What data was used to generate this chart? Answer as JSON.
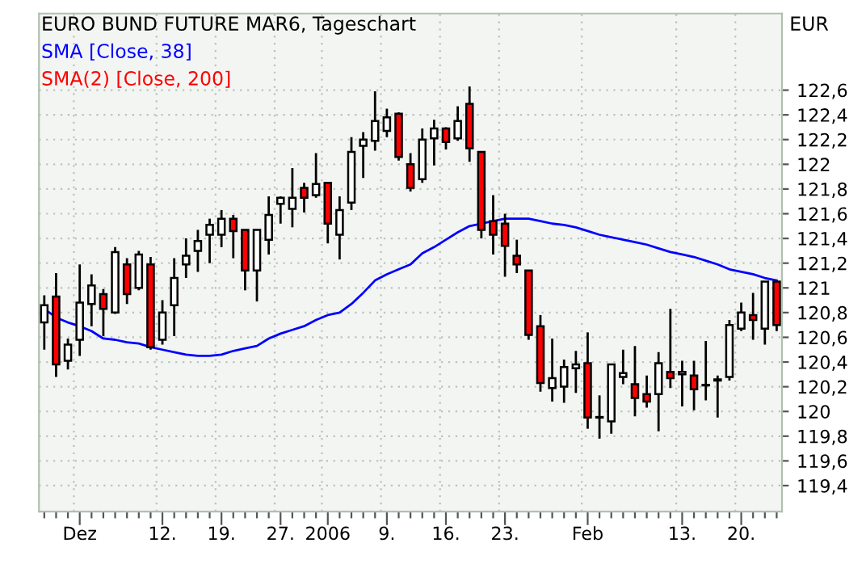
{
  "chart_data": {
    "type": "candlestick",
    "title": "EURO BUND FUTURE MAR6, Tageschart",
    "ylabel": "EUR",
    "categories": [
      null,
      null,
      null,
      "Dez",
      null,
      null,
      null,
      null,
      null,
      null,
      "12.",
      null,
      null,
      null,
      null,
      "19.",
      null,
      null,
      null,
      null,
      "27.",
      null,
      null,
      null,
      "2006",
      null,
      null,
      null,
      null,
      "9.",
      null,
      null,
      null,
      null,
      "16.",
      null,
      null,
      null,
      null,
      "23.",
      null,
      null,
      null,
      null,
      null,
      null,
      "Feb",
      null,
      null,
      null,
      null,
      null,
      null,
      null,
      "13.",
      null,
      null,
      null,
      null,
      "20.",
      null,
      null,
      null
    ],
    "ohlc": [
      [
        120.72,
        120.94,
        120.5,
        120.86
      ],
      [
        120.93,
        121.12,
        120.28,
        120.38
      ],
      [
        120.41,
        120.59,
        120.34,
        120.54
      ],
      [
        120.58,
        121.19,
        120.45,
        120.88
      ],
      [
        120.87,
        121.11,
        120.69,
        121.02
      ],
      [
        120.95,
        120.99,
        120.61,
        120.83
      ],
      [
        120.8,
        121.33,
        120.79,
        121.29
      ],
      [
        121.19,
        121.24,
        120.87,
        120.95
      ],
      [
        121.0,
        121.3,
        120.98,
        121.27
      ],
      [
        121.19,
        121.25,
        120.5,
        120.52
      ],
      [
        120.58,
        120.9,
        120.54,
        120.8
      ],
      [
        120.86,
        121.24,
        120.61,
        121.08
      ],
      [
        121.19,
        121.4,
        121.08,
        121.26
      ],
      [
        121.3,
        121.47,
        121.13,
        121.38
      ],
      [
        121.43,
        121.56,
        121.2,
        121.51
      ],
      [
        121.43,
        121.63,
        121.33,
        121.56
      ],
      [
        121.56,
        121.59,
        121.24,
        121.46
      ],
      [
        121.47,
        121.47,
        120.98,
        121.14
      ],
      [
        121.14,
        121.47,
        120.89,
        121.47
      ],
      [
        121.39,
        121.74,
        121.27,
        121.59
      ],
      [
        121.68,
        121.74,
        121.52,
        121.73
      ],
      [
        121.64,
        121.97,
        121.49,
        121.73
      ],
      [
        121.81,
        121.85,
        121.61,
        121.73
      ],
      [
        121.75,
        122.09,
        121.73,
        121.84
      ],
      [
        121.85,
        121.85,
        121.36,
        121.52
      ],
      [
        121.43,
        121.74,
        121.23,
        121.63
      ],
      [
        121.69,
        122.22,
        121.63,
        122.1
      ],
      [
        122.15,
        122.26,
        121.89,
        122.2
      ],
      [
        122.19,
        122.59,
        122.11,
        122.35
      ],
      [
        122.27,
        122.45,
        122.22,
        122.38
      ],
      [
        122.41,
        122.42,
        122.03,
        122.06
      ],
      [
        122.0,
        122.09,
        121.78,
        121.81
      ],
      [
        121.88,
        122.29,
        121.85,
        122.2
      ],
      [
        122.21,
        122.36,
        121.99,
        122.29
      ],
      [
        122.29,
        122.3,
        122.12,
        122.18
      ],
      [
        122.21,
        122.47,
        122.19,
        122.35
      ],
      [
        122.49,
        122.63,
        122.02,
        122.13
      ],
      [
        122.1,
        122.1,
        121.4,
        121.47
      ],
      [
        121.54,
        121.75,
        121.27,
        121.43
      ],
      [
        121.52,
        121.6,
        121.09,
        121.34
      ],
      [
        121.26,
        121.39,
        121.12,
        121.19
      ],
      [
        121.14,
        121.14,
        120.58,
        120.62
      ],
      [
        120.69,
        120.78,
        120.16,
        120.23
      ],
      [
        120.19,
        120.59,
        120.08,
        120.27
      ],
      [
        120.2,
        120.42,
        120.07,
        120.36
      ],
      [
        120.35,
        120.49,
        120.15,
        120.38
      ],
      [
        120.39,
        120.64,
        119.86,
        119.95
      ],
      [
        119.95,
        120.13,
        119.78,
        119.95
      ],
      [
        119.92,
        120.38,
        119.82,
        120.38
      ],
      [
        120.28,
        120.5,
        120.22,
        120.31
      ],
      [
        120.22,
        120.53,
        119.96,
        120.11
      ],
      [
        120.14,
        120.29,
        120.03,
        120.08
      ],
      [
        120.14,
        120.48,
        119.84,
        120.39
      ],
      [
        120.32,
        120.83,
        120.19,
        120.27
      ],
      [
        120.3,
        120.41,
        120.04,
        120.32
      ],
      [
        120.29,
        120.41,
        120.01,
        120.18
      ],
      [
        120.21,
        120.57,
        120.09,
        120.21
      ],
      [
        120.25,
        120.29,
        119.95,
        120.26
      ],
      [
        120.28,
        120.74,
        120.25,
        120.7
      ],
      [
        120.67,
        120.88,
        120.65,
        120.8
      ],
      [
        120.78,
        120.96,
        120.58,
        120.74
      ],
      [
        120.67,
        121.05,
        120.54,
        121.05
      ],
      [
        121.05,
        121.05,
        120.65,
        120.7
      ]
    ],
    "colors": [
      "#ffffff",
      "#ff0000",
      "#ffffff",
      "#ffffff",
      "#ffffff",
      "#ff0000",
      "#ffffff",
      "#ff0000",
      "#ffffff",
      "#ff0000",
      "#ffffff",
      "#ffffff",
      "#ffffff",
      "#ffffff",
      "#ffffff",
      "#ffffff",
      "#ff0000",
      "#ff0000",
      "#ffffff",
      "#ffffff",
      "#ffffff",
      "#ffffff",
      "#ff0000",
      "#ffffff",
      "#ff0000",
      "#ffffff",
      "#ffffff",
      "#ffffff",
      "#ffffff",
      "#ffffff",
      "#ff0000",
      "#ff0000",
      "#ffffff",
      "#ffffff",
      "#ff0000",
      "#ffffff",
      "#ff0000",
      "#ff0000",
      "#ff0000",
      "#ff0000",
      "#ff0000",
      "#ff0000",
      "#ff0000",
      "#ffffff",
      "#ffffff",
      "#ffffff",
      "#ff0000",
      "#ffffff",
      "#ffffff",
      "#ffffff",
      "#ff0000",
      "#ff0000",
      "#ffffff",
      "#ff0000",
      "#ffffff",
      "#ff0000",
      "#ffffff",
      "#ffffff",
      "#ffffff",
      "#ffffff",
      "#ff0000",
      "#ffffff",
      "#ff0000"
    ],
    "series": [
      {
        "name": "SMA [Close, 38]",
        "type": "line",
        "color": "#0000ff",
        "values": [
          120.83,
          120.76,
          120.72,
          120.69,
          120.65,
          120.59,
          120.58,
          120.56,
          120.55,
          120.52,
          120.5,
          120.48,
          120.46,
          120.45,
          120.45,
          120.46,
          120.49,
          120.51,
          120.53,
          120.59,
          120.63,
          120.66,
          120.69,
          120.74,
          120.78,
          120.8,
          120.87,
          120.96,
          121.06,
          121.11,
          121.15,
          121.19,
          121.28,
          121.33,
          121.39,
          121.45,
          121.5,
          121.52,
          121.54,
          121.56,
          121.56,
          121.56,
          121.54,
          121.52,
          121.51,
          121.49,
          121.46,
          121.43,
          121.41,
          121.39,
          121.37,
          121.35,
          121.32,
          121.29,
          121.27,
          121.25,
          121.22,
          121.19,
          121.15,
          121.13,
          121.11,
          121.08,
          121.06
        ]
      },
      {
        "name": "SMA(2) [Close, 200]",
        "type": "line",
        "color": "#ff0000",
        "values": [
          null,
          null,
          null,
          null,
          null,
          null,
          null,
          null,
          null,
          null,
          null,
          null,
          null,
          null,
          null,
          null,
          null,
          null,
          null,
          null,
          null,
          null,
          null,
          null,
          null,
          null,
          null,
          null,
          null,
          null,
          null,
          null,
          null,
          null,
          null,
          null,
          null,
          null,
          null,
          null,
          null,
          null,
          null,
          null,
          null,
          null,
          null,
          null,
          null,
          null,
          null,
          null,
          null,
          null,
          null,
          null,
          null,
          null,
          null,
          null,
          null,
          null,
          null
        ]
      }
    ],
    "ylim": [
      119.19,
      123.22
    ],
    "yticks": [
      {
        "value": 119.4,
        "label": "119,4"
      },
      {
        "value": 119.6,
        "label": "119,6"
      },
      {
        "value": 119.8,
        "label": "119,8"
      },
      120,
      {
        "value": 120.2,
        "label": "120,2"
      },
      {
        "value": 120.4,
        "label": "120,4"
      },
      {
        "value": 120.6,
        "label": "120,6"
      },
      {
        "value": 120.8,
        "label": "120,8"
      },
      121,
      {
        "value": 121.2,
        "label": "121,2"
      },
      {
        "value": 121.4,
        "label": "121,4"
      },
      {
        "value": 121.6,
        "label": "121,6"
      },
      {
        "value": 121.8,
        "label": "121,8"
      },
      122,
      {
        "value": 122.2,
        "label": "122,2"
      },
      {
        "value": 122.4,
        "label": "122,4"
      },
      {
        "value": 122.6,
        "label": "122,6"
      }
    ],
    "grid": true,
    "legend": "top left"
  }
}
